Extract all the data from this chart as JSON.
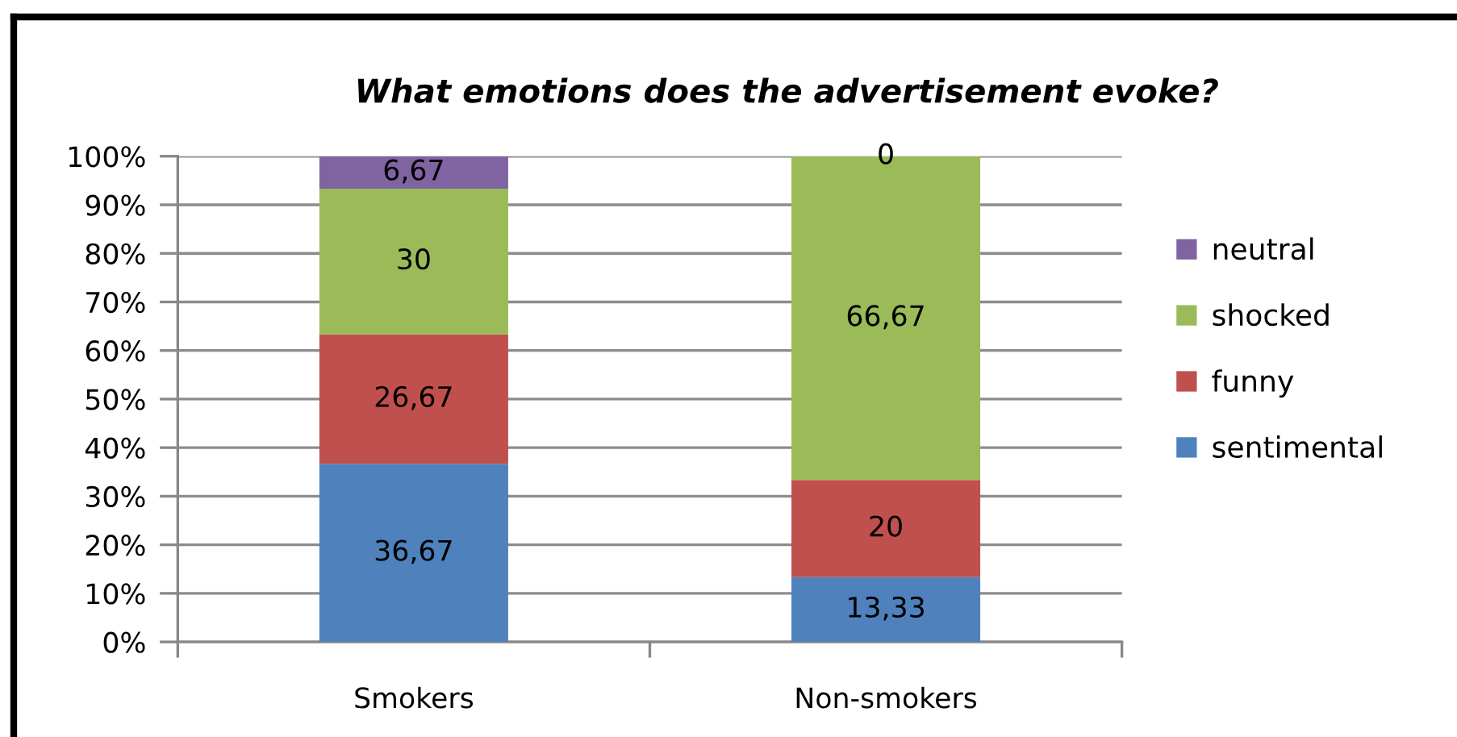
{
  "chart_data": {
    "type": "bar",
    "stacked": true,
    "title": "What emotions does the advertisement evoke?",
    "categories": [
      "Smokers",
      "Non-smokers"
    ],
    "series": [
      {
        "name": "sentimental",
        "color": "#4f81bd",
        "values": [
          36.67,
          13.33
        ],
        "value_labels": [
          "36,67",
          "13,33"
        ]
      },
      {
        "name": "funny",
        "color": "#c0504d",
        "values": [
          26.67,
          20
        ],
        "value_labels": [
          "26,67",
          "20"
        ]
      },
      {
        "name": "shocked",
        "color": "#9bbb59",
        "values": [
          30,
          66.67
        ],
        "value_labels": [
          "30",
          "66,67"
        ]
      },
      {
        "name": "neutral",
        "color": "#8064a2",
        "values": [
          6.67,
          0
        ],
        "value_labels": [
          "6,67",
          "0"
        ]
      }
    ],
    "ylim": [
      0,
      100
    ],
    "yticks": [
      {
        "value": 0,
        "label": "0%"
      },
      {
        "value": 10,
        "label": "10%"
      },
      {
        "value": 20,
        "label": "20%"
      },
      {
        "value": 30,
        "label": "30%"
      },
      {
        "value": 40,
        "label": "40%"
      },
      {
        "value": 50,
        "label": "50%"
      },
      {
        "value": 60,
        "label": "60%"
      },
      {
        "value": 70,
        "label": "70%"
      },
      {
        "value": 80,
        "label": "80%"
      },
      {
        "value": 90,
        "label": "90%"
      },
      {
        "value": 100,
        "label": "100%"
      }
    ],
    "grid": "y",
    "legend": "right"
  }
}
